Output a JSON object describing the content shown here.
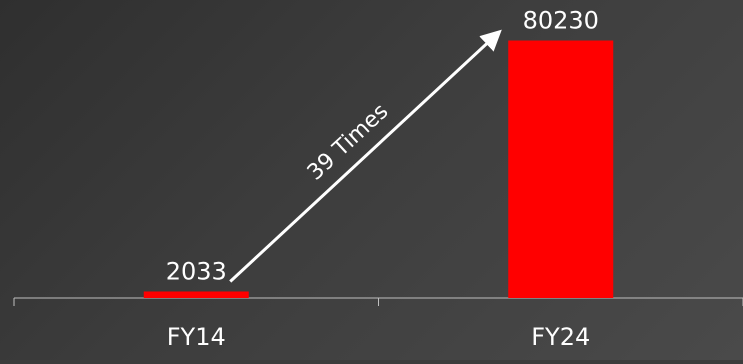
{
  "chart_data": {
    "type": "bar",
    "categories": [
      "FY14",
      "FY24"
    ],
    "values": [
      2033,
      80230
    ],
    "data_labels": [
      "2033",
      "80230"
    ],
    "title": "",
    "xlabel": "",
    "ylabel": "",
    "ylim": [
      0,
      86000
    ],
    "grid": false,
    "legend": "none",
    "bar_color": "#ff0000",
    "axis_color": "#bfbfbf",
    "text_color": "#ffffff",
    "annotation": {
      "text": "39 Times",
      "from_category": "FY14",
      "to_category": "FY24",
      "style": "arrow"
    }
  }
}
